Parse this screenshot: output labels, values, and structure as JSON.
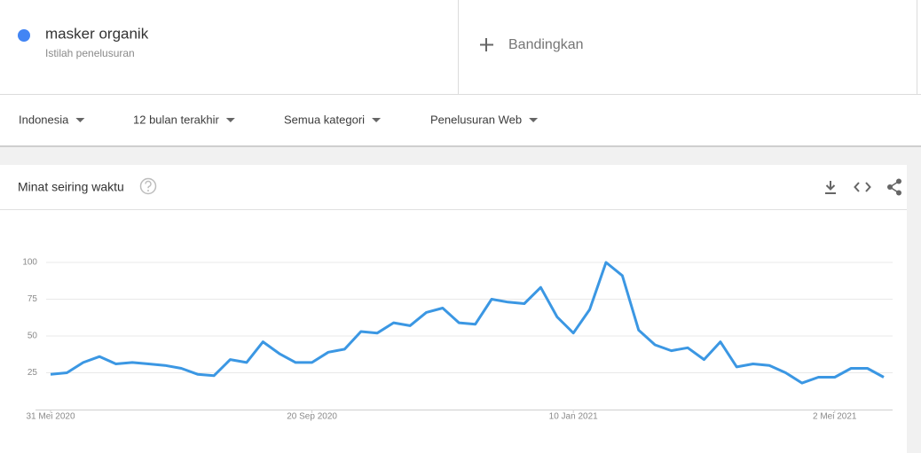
{
  "search_term": {
    "name": "masker organik",
    "subtitle": "Istilah penelusuran"
  },
  "compare": "Bandingkan",
  "filters": [
    "Indonesia",
    "12 bulan terakhir",
    "Semua kategori",
    "Penelusuran Web"
  ],
  "chart_data": {
    "type": "line",
    "title": "Minat seiring waktu",
    "categories": [
      "31 Mei 2020",
      null,
      null,
      null,
      null,
      null,
      null,
      null,
      null,
      null,
      null,
      null,
      null,
      null,
      null,
      null,
      "20 Sep 2020",
      null,
      null,
      null,
      null,
      null,
      null,
      null,
      null,
      null,
      null,
      null,
      null,
      null,
      null,
      null,
      "10 Jan 2021",
      null,
      null,
      null,
      null,
      null,
      null,
      null,
      null,
      null,
      null,
      null,
      null,
      null,
      null,
      null,
      "2 Mei 2021",
      null,
      null,
      null
    ],
    "values": [
      24,
      25,
      32,
      36,
      31,
      32,
      31,
      30,
      28,
      24,
      23,
      34,
      32,
      46,
      38,
      32,
      32,
      39,
      41,
      53,
      52,
      59,
      57,
      66,
      69,
      59,
      58,
      75,
      73,
      72,
      83,
      63,
      52,
      68,
      100,
      91,
      54,
      44,
      40,
      42,
      34,
      46,
      29,
      31,
      30,
      25,
      18,
      22,
      22,
      28,
      28,
      22
    ],
    "color": "#3b97e3",
    "ylim": [
      0,
      100
    ],
    "yticks": [
      25,
      50,
      75,
      100
    ],
    "grid": true
  }
}
